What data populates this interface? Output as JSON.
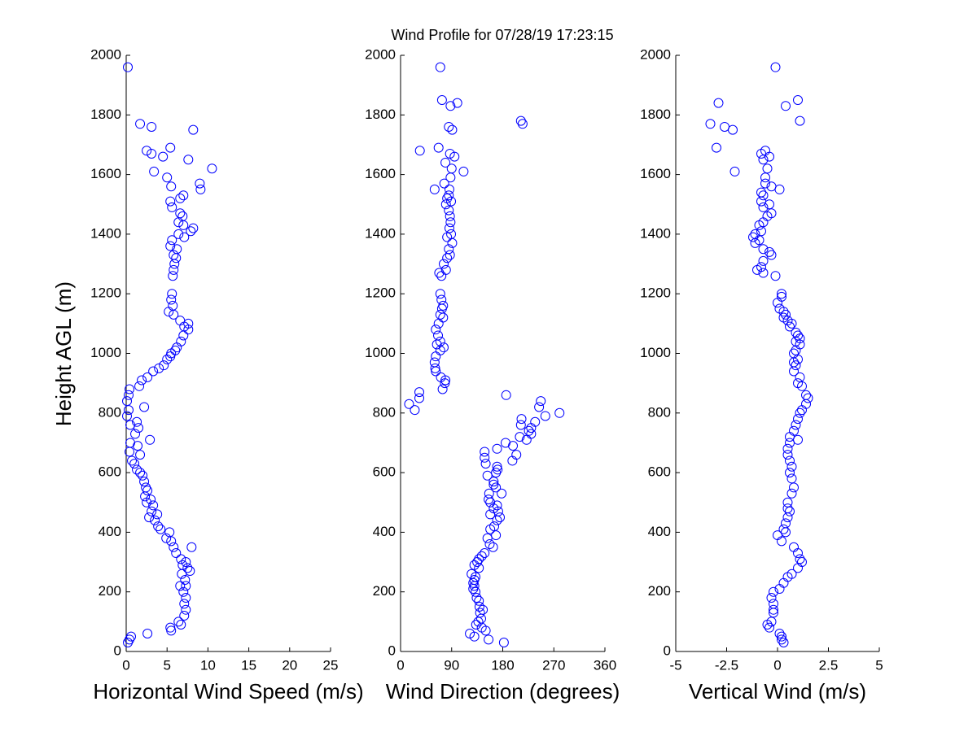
{
  "chart_data": [
    {
      "type": "scatter",
      "title": "Wind Profile for  07/28/19 17:23:15",
      "ylabel": "Height AGL (m)",
      "xlabel": "Horizontal Wind Speed (m/s)",
      "color": "#0000ff",
      "xlim": [
        0,
        25
      ],
      "xticks": [
        0,
        5,
        10,
        15,
        20,
        25
      ],
      "ylim": [
        0,
        2000
      ],
      "yticks": [
        0,
        200,
        400,
        600,
        800,
        1000,
        1200,
        1400,
        1600,
        1800,
        2000
      ],
      "x": [
        0.2,
        1.7,
        3.1,
        8.2,
        2.5,
        3.1,
        5.4,
        4.5,
        7.6,
        10.5,
        3.4,
        9,
        5,
        9.1,
        5.5,
        7,
        6.6,
        5.4,
        5.6,
        6.6,
        6.9,
        6.4,
        7,
        8.2,
        7.9,
        6.4,
        7.1,
        5.6,
        5.4,
        6.2,
        5.8,
        6.1,
        5.9,
        5.8,
        5.7,
        5.6,
        5.5,
        5.7,
        5.2,
        5.8,
        6.6,
        7.6,
        7.1,
        7.6,
        7,
        6.7,
        6.2,
        6,
        5.5,
        5.4,
        5,
        4.6,
        4,
        3.3,
        2.6,
        1.9,
        1.6,
        0.4,
        0.3,
        0.1,
        2.2,
        0.3,
        0.1,
        1.3,
        0.5,
        1.5,
        1.1,
        2.9,
        0.5,
        1.4,
        0.4,
        1.7,
        0.7,
        1,
        1.3,
        1.7,
        2,
        2.2,
        2.4,
        2.6,
        2.3,
        3,
        2.5,
        3.3,
        3.1,
        3.8,
        2.8,
        3.5,
        3.9,
        4.2,
        5.3,
        4.9,
        5.5,
        5.8,
        8,
        6.1,
        6.7,
        7.3,
        6.9,
        7.5,
        7.8,
        6.8,
        7.2,
        6.6,
        7.3,
        7,
        7.3,
        7.1,
        7.3,
        7.1,
        6.4,
        6.7,
        5.4,
        5.5,
        2.6,
        0.6,
        0.4,
        0.2
      ],
      "y": [
        1960,
        1770,
        1760,
        1750,
        1680,
        1670,
        1690,
        1660,
        1650,
        1620,
        1610,
        1570,
        1590,
        1550,
        1560,
        1530,
        1520,
        1510,
        1490,
        1470,
        1460,
        1440,
        1430,
        1420,
        1410,
        1400,
        1390,
        1380,
        1360,
        1350,
        1330,
        1320,
        1300,
        1280,
        1260,
        1200,
        1180,
        1160,
        1140,
        1130,
        1110,
        1100,
        1090,
        1080,
        1060,
        1040,
        1020,
        1010,
        1000,
        990,
        980,
        960,
        950,
        940,
        920,
        910,
        890,
        880,
        860,
        840,
        820,
        810,
        790,
        770,
        760,
        750,
        730,
        710,
        700,
        690,
        670,
        660,
        640,
        630,
        610,
        600,
        590,
        570,
        550,
        540,
        520,
        510,
        500,
        490,
        470,
        460,
        450,
        440,
        420,
        410,
        400,
        380,
        370,
        350,
        350,
        330,
        310,
        300,
        290,
        280,
        270,
        260,
        240,
        220,
        220,
        200,
        180,
        160,
        140,
        120,
        100,
        90,
        80,
        70,
        60,
        50,
        40,
        30
      ]
    },
    {
      "type": "scatter",
      "xlabel": "Wind Direction (degrees)",
      "color": "#0000ff",
      "xlim": [
        0,
        360
      ],
      "xticks": [
        0,
        90,
        180,
        270,
        360
      ],
      "ylim": [
        0,
        2000
      ],
      "yticks": [
        0,
        200,
        400,
        600,
        800,
        1000,
        1200,
        1400,
        1600,
        1800,
        2000
      ],
      "x": [
        70,
        73,
        100,
        88,
        212,
        215,
        85,
        91,
        34,
        67,
        87,
        95,
        79,
        90,
        111,
        88,
        77,
        60,
        86,
        85,
        82,
        89,
        80,
        85,
        87,
        88,
        86,
        89,
        82,
        91,
        85,
        87,
        82,
        76,
        80,
        68,
        72,
        70,
        72,
        75,
        73,
        70,
        75,
        67,
        62,
        66,
        70,
        64,
        76,
        70,
        62,
        60,
        61,
        62,
        71,
        79,
        78,
        74,
        15,
        25,
        33,
        33,
        186,
        247,
        244,
        280,
        255,
        213,
        237,
        212,
        230,
        226,
        230,
        210,
        222,
        185,
        198,
        170,
        148,
        148,
        204,
        197,
        150,
        170,
        171,
        168,
        153,
        164,
        164,
        168,
        156,
        178,
        155,
        158,
        170,
        164,
        172,
        158,
        175,
        170,
        165,
        158,
        168,
        153,
        157,
        163,
        148,
        143,
        138,
        135,
        130,
        138,
        125,
        132,
        130,
        128,
        130,
        128,
        132,
        134,
        138,
        139,
        145,
        140,
        142,
        137,
        133,
        143,
        150,
        122,
        130,
        155,
        182
      ],
      "y": [
        1960,
        1850,
        1840,
        1830,
        1780,
        1770,
        1760,
        1750,
        1680,
        1690,
        1670,
        1660,
        1640,
        1620,
        1610,
        1590,
        1570,
        1550,
        1550,
        1530,
        1520,
        1510,
        1500,
        1480,
        1460,
        1440,
        1420,
        1400,
        1390,
        1370,
        1350,
        1330,
        1320,
        1300,
        1280,
        1270,
        1260,
        1200,
        1180,
        1160,
        1150,
        1130,
        1120,
        1100,
        1080,
        1060,
        1040,
        1030,
        1020,
        1010,
        990,
        970,
        950,
        940,
        920,
        910,
        900,
        880,
        830,
        810,
        870,
        850,
        860,
        840,
        820,
        800,
        790,
        780,
        770,
        760,
        750,
        740,
        730,
        720,
        710,
        700,
        690,
        680,
        670,
        650,
        660,
        640,
        630,
        620,
        610,
        600,
        590,
        570,
        560,
        550,
        530,
        530,
        510,
        500,
        490,
        480,
        470,
        460,
        450,
        440,
        420,
        410,
        390,
        380,
        360,
        350,
        330,
        320,
        310,
        300,
        290,
        280,
        260,
        250,
        240,
        230,
        220,
        210,
        200,
        180,
        170,
        150,
        140,
        130,
        110,
        100,
        90,
        80,
        70,
        60,
        50,
        40,
        30
      ]
    },
    {
      "type": "scatter",
      "xlabel": "Vertical Wind (m/s)",
      "color": "#0000ff",
      "xlim": [
        -5,
        5
      ],
      "xticks": [
        -5,
        -2.5,
        0,
        2.5,
        5
      ],
      "ylim": [
        0,
        2000
      ],
      "yticks": [
        0,
        200,
        400,
        600,
        800,
        1000,
        1200,
        1400,
        1600,
        1800,
        2000
      ],
      "x": [
        -0.1,
        1,
        -2.9,
        0.4,
        1.1,
        -3.3,
        -2.6,
        -2.2,
        -3,
        -0.6,
        -0.8,
        -0.4,
        -0.7,
        -0.5,
        -2.1,
        -0.6,
        -0.6,
        -0.3,
        0.1,
        -0.8,
        -0.7,
        -0.8,
        -0.4,
        -0.7,
        -0.3,
        -0.5,
        -0.7,
        -0.9,
        -0.8,
        -1.1,
        -1.2,
        -0.9,
        -1.1,
        -0.7,
        -0.4,
        -0.3,
        -0.7,
        -0.8,
        -1,
        -0.7,
        -0.1,
        0.2,
        0.2,
        0,
        0.1,
        0.3,
        0.4,
        0.3,
        0.5,
        0.7,
        0.6,
        0.9,
        1,
        1.1,
        0.9,
        1.1,
        0.9,
        0.8,
        1,
        0.8,
        0.9,
        0.8,
        1.1,
        1,
        1.2,
        1.4,
        1.5,
        1.4,
        1.2,
        1.1,
        1,
        0.9,
        0.8,
        0.6,
        1,
        0.6,
        0.5,
        0.5,
        0.6,
        0.7,
        0.6,
        0.7,
        0.8,
        0.7,
        0.5,
        0.5,
        0.6,
        0.5,
        0.4,
        0.3,
        0.4,
        0,
        0.2,
        0.8,
        1,
        1.1,
        1.2,
        1,
        0.7,
        0.5,
        0.3,
        0.1,
        -0.2,
        -0.3,
        -0.2,
        -0.2,
        -0.2,
        -0.3,
        -0.5,
        -0.4,
        0.1,
        0.2,
        0.2,
        0.3
      ],
      "y": [
        1960,
        1850,
        1840,
        1830,
        1780,
        1770,
        1760,
        1750,
        1690,
        1680,
        1670,
        1660,
        1650,
        1620,
        1610,
        1590,
        1570,
        1560,
        1550,
        1540,
        1530,
        1510,
        1500,
        1490,
        1470,
        1460,
        1440,
        1430,
        1410,
        1400,
        1390,
        1380,
        1370,
        1350,
        1340,
        1330,
        1310,
        1290,
        1280,
        1270,
        1260,
        1200,
        1190,
        1170,
        1150,
        1140,
        1130,
        1120,
        1110,
        1100,
        1090,
        1070,
        1060,
        1050,
        1040,
        1030,
        1010,
        1000,
        980,
        970,
        960,
        940,
        920,
        900,
        890,
        860,
        850,
        830,
        810,
        800,
        780,
        760,
        740,
        720,
        710,
        700,
        680,
        660,
        640,
        620,
        600,
        580,
        550,
        530,
        500,
        480,
        470,
        450,
        430,
        410,
        400,
        390,
        370,
        350,
        330,
        310,
        300,
        280,
        260,
        250,
        230,
        210,
        200,
        180,
        160,
        140,
        130,
        100,
        90,
        80,
        60,
        50,
        40,
        30
      ]
    }
  ]
}
